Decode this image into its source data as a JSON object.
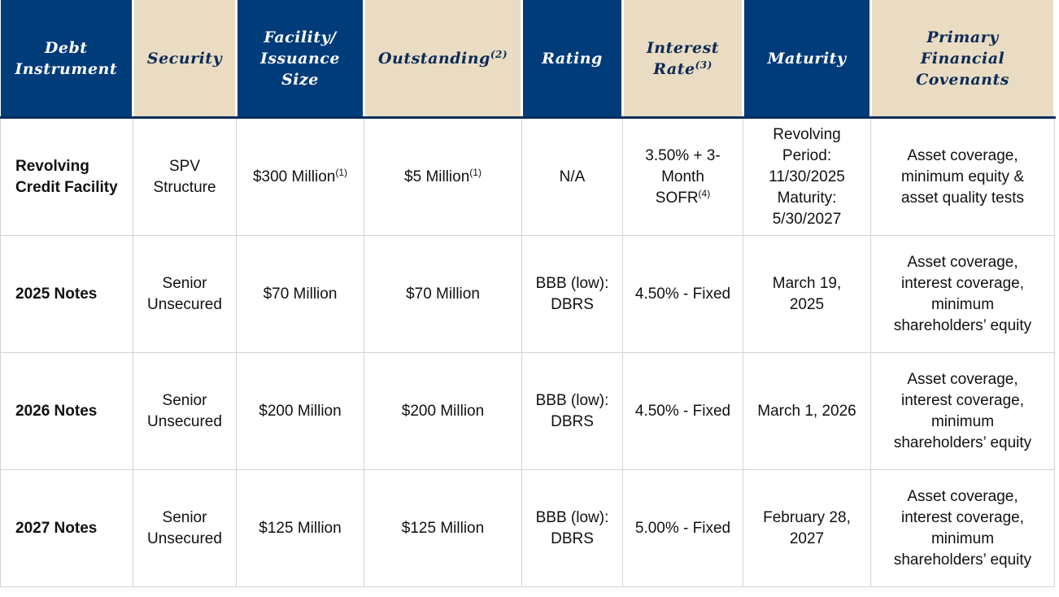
{
  "table": {
    "header": [
      {
        "lines": [
          "Debt",
          "Instrument"
        ]
      },
      {
        "lines": [
          "Security"
        ]
      },
      {
        "lines": [
          "Facility/",
          "Issuance",
          "Size"
        ]
      },
      {
        "lines": [
          "Outstanding"
        ],
        "sup": "(2)"
      },
      {
        "lines": [
          "Rating"
        ]
      },
      {
        "lines": [
          "Interest",
          "Rate"
        ],
        "sup": "(3)"
      },
      {
        "lines": [
          "Maturity"
        ]
      },
      {
        "lines": [
          "Primary",
          "Financial",
          "Covenants"
        ]
      }
    ],
    "rows": [
      [
        {
          "lines": [
            "Revolving",
            "Credit Facility"
          ]
        },
        {
          "lines": [
            "SPV",
            "Structure"
          ]
        },
        {
          "lines": [
            "$300 Million"
          ],
          "sup": "(1)"
        },
        {
          "lines": [
            "$5 Million"
          ],
          "sup": "(1)"
        },
        {
          "lines": [
            "N/A"
          ]
        },
        {
          "lines": [
            "3.50% + 3-",
            "Month",
            "SOFR"
          ],
          "sup": "(4)"
        },
        {
          "lines": [
            "Revolving",
            "Period:",
            "11/30/2025",
            "Maturity:",
            "5/30/2027"
          ]
        },
        {
          "lines": [
            "Asset coverage,",
            "minimum equity &",
            "asset quality tests"
          ]
        }
      ],
      [
        {
          "lines": [
            "2025 Notes"
          ]
        },
        {
          "lines": [
            "Senior",
            "Unsecured"
          ]
        },
        {
          "lines": [
            "$70 Million"
          ]
        },
        {
          "lines": [
            "$70 Million"
          ]
        },
        {
          "lines": [
            "BBB (low):",
            "DBRS"
          ]
        },
        {
          "lines": [
            "4.50% - Fixed"
          ]
        },
        {
          "lines": [
            "March 19,",
            "2025"
          ]
        },
        {
          "lines": [
            "Asset coverage,",
            "interest coverage,",
            "minimum",
            "shareholders’ equity"
          ]
        }
      ],
      [
        {
          "lines": [
            "2026 Notes"
          ]
        },
        {
          "lines": [
            "Senior",
            "Unsecured"
          ]
        },
        {
          "lines": [
            "$200 Million"
          ]
        },
        {
          "lines": [
            "$200 Million"
          ]
        },
        {
          "lines": [
            "BBB (low):",
            "DBRS"
          ]
        },
        {
          "lines": [
            "4.50% - Fixed"
          ]
        },
        {
          "lines": [
            "March 1, 2026"
          ]
        },
        {
          "lines": [
            "Asset coverage,",
            "interest coverage,",
            "minimum",
            "shareholders’ equity"
          ]
        }
      ],
      [
        {
          "lines": [
            "2027 Notes"
          ]
        },
        {
          "lines": [
            "Senior",
            "Unsecured"
          ]
        },
        {
          "lines": [
            "$125 Million"
          ]
        },
        {
          "lines": [
            "$125 Million"
          ]
        },
        {
          "lines": [
            "BBB (low):",
            "DBRS"
          ]
        },
        {
          "lines": [
            "5.00% - Fixed"
          ]
        },
        {
          "lines": [
            "February 28,",
            "2027"
          ]
        },
        {
          "lines": [
            "Asset coverage,",
            "interest coverage,",
            "minimum",
            "shareholders’ equity"
          ]
        }
      ]
    ]
  }
}
